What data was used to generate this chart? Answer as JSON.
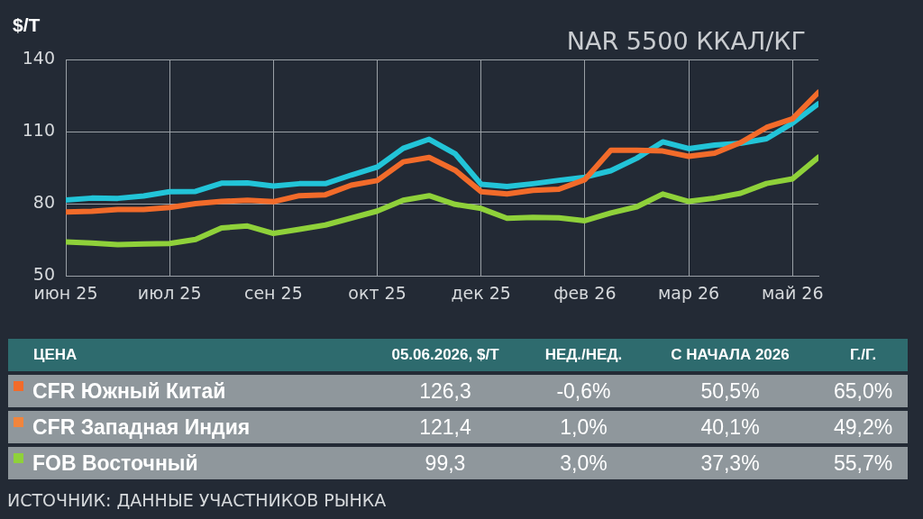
{
  "chart_data": [
    {
      "type": "line",
      "title": "NAR 5500 ККАЛ/КГ",
      "ylabel": "$/Т",
      "categories": [
        "июн 25",
        null,
        null,
        null,
        "июл 25",
        null,
        null,
        null,
        "сен 25",
        null,
        null,
        null,
        "окт 25",
        null,
        null,
        null,
        "дек 25",
        null,
        null,
        null,
        "фев 26",
        null,
        null,
        null,
        "мар 26",
        null,
        null,
        null,
        "май 26",
        null
      ],
      "ylim": [
        50,
        140
      ],
      "yticks": [
        50,
        80,
        110,
        140
      ],
      "grid": true,
      "legend": false,
      "marker": "none",
      "line_style": "solid",
      "series": [
        {
          "color": "#f26b2a",
          "values": [
            76.5,
            76.8,
            77.6,
            77.6,
            78.4,
            80,
            80.9,
            81.4,
            80.8,
            83.3,
            83.7,
            87.7,
            89.6,
            97.4,
            99.2,
            93.9,
            85,
            84,
            85.5,
            86,
            90,
            102.2,
            102.2,
            101.9,
            99.7,
            101,
            105.4,
            111.7,
            115.3,
            126.3
          ]
        },
        {
          "color": "#22c4d8",
          "values": [
            81.5,
            82.3,
            82.2,
            83.2,
            85,
            85.1,
            88.5,
            88.6,
            87.3,
            88.3,
            88.3,
            91.9,
            95.2,
            103,
            106.8,
            100.8,
            88.1,
            87.1,
            88.3,
            89.7,
            91,
            93.7,
            98.9,
            105.7,
            102.9,
            104.4,
            105.1,
            107,
            113.5,
            121.6
          ]
        },
        {
          "color": "#8fd13a",
          "values": [
            64.1,
            63.6,
            62.9,
            63.2,
            63.4,
            65.1,
            69.9,
            70.7,
            67.6,
            69.3,
            71.1,
            74,
            76.9,
            81.4,
            83.3,
            79.7,
            78,
            73.9,
            74.3,
            74.1,
            72.9,
            76.1,
            78.7,
            84,
            80.9,
            82.3,
            84.3,
            88.4,
            90.3,
            99.3
          ]
        }
      ]
    },
    {
      "type": "other",
      "categories": [
        "ЦЕНА",
        "05.06.2026, $/Т",
        "НЕД./НЕД.",
        "С НАЧАЛА 2026",
        "Г./Г."
      ],
      "y_categories": [
        "CFR Южный Китай",
        "CFR Западная Индия",
        "FOB Восточный"
      ],
      "cell_labels": [
        [
          "126,3",
          "-0,6%",
          "50,5%",
          "65,0%"
        ],
        [
          "121,4",
          "1,0%",
          "40,1%",
          "49,2%"
        ],
        [
          "99,3",
          "3,0%",
          "37,3%",
          "55,7%"
        ]
      ],
      "annotations": [
        "ИСТОЧНИК: ДАННЫЕ УЧАСТНИКОВ РЫНКА"
      ]
    }
  ]
}
